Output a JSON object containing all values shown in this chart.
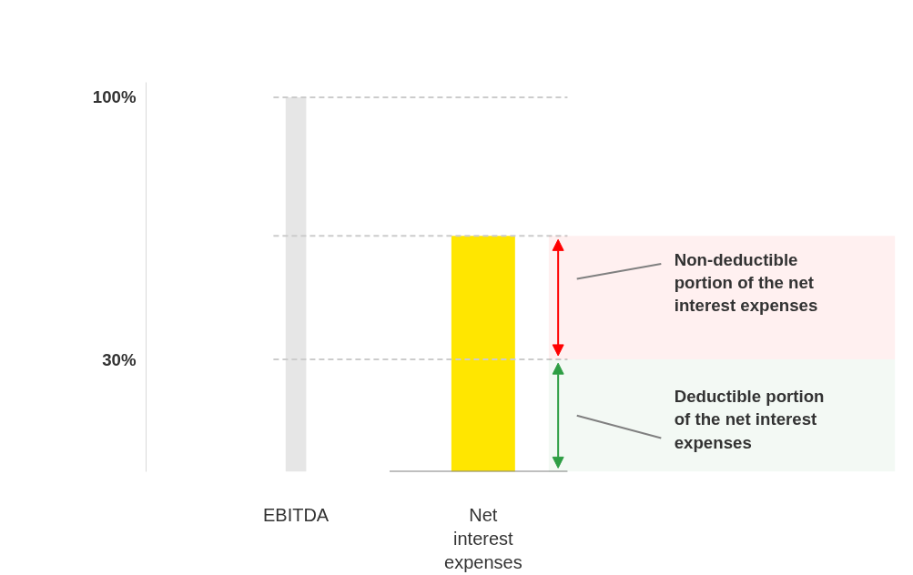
{
  "chart_data": {
    "type": "bar",
    "categories": [
      "EBITDA",
      "Net interest expenses"
    ],
    "values": [
      100,
      63
    ],
    "colors": [
      "#e6e6e6",
      "#ffe600"
    ],
    "ylim": [
      0,
      104
    ],
    "yticks": [
      {
        "value": 30,
        "label": "30%"
      },
      {
        "value": 100,
        "label": "100%"
      }
    ],
    "grid": false,
    "ref_lines": [
      {
        "axis": "y",
        "value": 100,
        "color": "#cccccc",
        "line_style": "dashed"
      },
      {
        "axis": "y",
        "value": 63,
        "color": "#cccccc",
        "line_style": "dashed"
      },
      {
        "axis": "y",
        "value": 30,
        "color": "#cccccc",
        "line_style": "dashed"
      },
      {
        "axis": "y",
        "value": 0,
        "color": "#808080",
        "line_style": "solid"
      }
    ],
    "bands": [
      {
        "axis": "y",
        "from": 30,
        "to": 63,
        "label": "Non-deductible portion of the net interest expenses",
        "color": "#ff0000"
      },
      {
        "axis": "y",
        "from": 0,
        "to": 30,
        "label": "Deductible portion of the net interest expenses",
        "color": "#2e9e44"
      }
    ]
  }
}
